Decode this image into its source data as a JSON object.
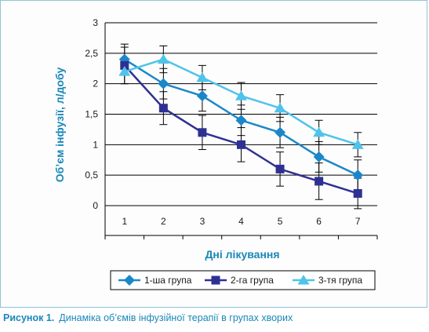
{
  "chart_data": {
    "type": "line",
    "xlabel": "Дні лікування",
    "ylabel": "Об’єм інфузії, л/добу",
    "x": [
      1,
      2,
      3,
      4,
      5,
      6,
      7
    ],
    "ylim": [
      0,
      3
    ],
    "yticks": [
      "0",
      "0,5",
      "1",
      "1,5",
      "2",
      "2,5",
      "3"
    ],
    "ytick_values": [
      0,
      0.5,
      1,
      1.5,
      2,
      2.5,
      3
    ],
    "grid": true,
    "legend_position": "bottom",
    "series": [
      {
        "name": "1-ша група",
        "values": [
          2.4,
          2.0,
          1.8,
          1.4,
          1.2,
          0.8,
          0.5
        ],
        "error": [
          0.25,
          0.25,
          0.25,
          0.25,
          0.25,
          0.25,
          0.25
        ],
        "color": "#1a87c9",
        "marker": "diamond"
      },
      {
        "name": "2-га група",
        "values": [
          2.3,
          1.6,
          1.2,
          1.0,
          0.6,
          0.4,
          0.2
        ],
        "error": [
          0.3,
          0.27,
          0.28,
          0.28,
          0.28,
          0.3,
          0.25
        ],
        "color": "#2e3192",
        "marker": "square"
      },
      {
        "name": "3-тя група",
        "values": [
          2.2,
          2.4,
          2.1,
          1.8,
          1.6,
          1.2,
          1.0
        ],
        "error": [
          0.2,
          0.22,
          0.2,
          0.22,
          0.22,
          0.2,
          0.2
        ],
        "color": "#4fc3ea",
        "marker": "triangle"
      }
    ]
  },
  "caption": {
    "label": "Рисунок 1.",
    "text": "Динаміка об’ємів інфузійної терапії в групах хворих"
  }
}
